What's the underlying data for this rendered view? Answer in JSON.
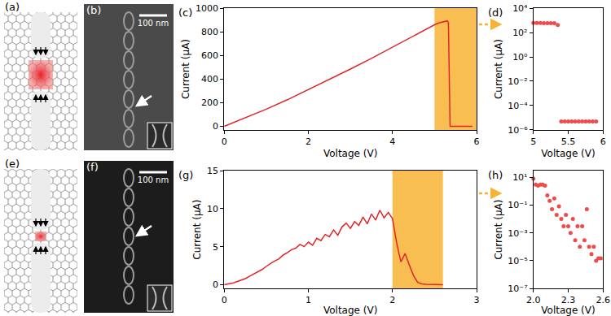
{
  "chart_data": [
    {
      "type": "line",
      "title": "(c)",
      "x_label": "Voltage (V)",
      "y_label": "Current (μA)",
      "color": "#e0262b",
      "x": [
        0,
        0.5,
        1,
        1.5,
        2,
        2.5,
        3,
        3.5,
        4,
        4.5,
        5,
        5.1,
        5.2,
        5.3,
        5.33,
        5.35,
        5.37,
        5.5,
        5.7,
        5.9
      ],
      "values": [
        0,
        70,
        145,
        225,
        310,
        395,
        485,
        575,
        670,
        770,
        860,
        875,
        885,
        893,
        880,
        200,
        0,
        0,
        0,
        0
      ],
      "xlim": [
        0,
        6
      ],
      "xticks": [
        0,
        2,
        4,
        6
      ],
      "ylim": [
        -30,
        1000
      ],
      "yticks": [
        0,
        200,
        400,
        600,
        800,
        1000
      ],
      "highlight_x": [
        5,
        6
      ]
    },
    {
      "type": "scatter",
      "title": "(d)",
      "x_label": "Voltage (V)",
      "y_label": "Current (μA)",
      "color": "#ef4b4b",
      "log": "y",
      "x": [
        5.0,
        5.05,
        5.1,
        5.15,
        5.2,
        5.25,
        5.3,
        5.35,
        5.4,
        5.45,
        5.5,
        5.55,
        5.6,
        5.65,
        5.7,
        5.75,
        5.8,
        5.85,
        5.9
      ],
      "values": [
        620,
        615,
        610,
        600,
        595,
        590,
        585,
        420,
        5e-06,
        5e-06,
        5e-06,
        5e-06,
        5e-06,
        5e-06,
        5e-06,
        5e-06,
        5e-06,
        5e-06,
        5e-06
      ],
      "xlim": [
        5,
        6
      ],
      "xticks": [
        5,
        5.5,
        6
      ],
      "ylim": [
        1e-06,
        10000
      ],
      "yticks": [
        {
          "value": 1e-06,
          "label": "10⁻⁶"
        },
        {
          "value": 0.0001,
          "label": "10⁻⁴"
        },
        {
          "value": 0.01,
          "label": "10⁻²"
        },
        {
          "value": 1,
          "label": "10⁰"
        },
        {
          "value": 100,
          "label": "10²"
        },
        {
          "value": 10000,
          "label": "10⁴"
        }
      ]
    },
    {
      "type": "line",
      "title": "(g)",
      "x_label": "Voltage (V)",
      "y_label": "Current (μA)",
      "color": "#e0262b",
      "x": [
        0,
        0.05,
        0.1,
        0.15,
        0.2,
        0.25,
        0.3,
        0.35,
        0.4,
        0.45,
        0.5,
        0.55,
        0.6,
        0.65,
        0.7,
        0.75,
        0.8,
        0.85,
        0.9,
        0.95,
        1.0,
        1.05,
        1.1,
        1.15,
        1.2,
        1.25,
        1.3,
        1.35,
        1.4,
        1.45,
        1.5,
        1.55,
        1.6,
        1.65,
        1.7,
        1.75,
        1.8,
        1.85,
        1.9,
        1.95,
        2.0,
        2.05,
        2.1,
        2.15,
        2.2,
        2.25,
        2.3,
        2.35,
        2.4,
        2.45,
        2.5,
        2.55,
        2.6
      ],
      "values": [
        0,
        0.1,
        0.2,
        0.4,
        0.6,
        0.8,
        1.1,
        1.4,
        1.7,
        2.0,
        2.4,
        2.8,
        3.1,
        3.4,
        3.9,
        4.2,
        4.6,
        4.8,
        5.3,
        5.0,
        5.6,
        5.2,
        6.1,
        5.8,
        6.6,
        6.3,
        7.2,
        6.5,
        7.6,
        8.1,
        7.4,
        8.3,
        7.8,
        8.9,
        8.0,
        9.3,
        8.5,
        9.8,
        8.8,
        9.5,
        8.7,
        5.5,
        3.0,
        4.1,
        2.6,
        1.2,
        0.3,
        0.1,
        0.05,
        0.02,
        0.01,
        0.01,
        0.01
      ],
      "xlim": [
        0,
        3
      ],
      "xticks": [
        0,
        1,
        2,
        3
      ],
      "ylim": [
        -0.5,
        15
      ],
      "yticks": [
        0,
        5,
        10,
        15
      ],
      "highlight_x": [
        2,
        2.6
      ]
    },
    {
      "type": "scatter",
      "title": "(h)",
      "x_label": "Voltage (V)",
      "y_label": "Current (μA)",
      "color": "#ef4b4b",
      "log": "y",
      "x": [
        2.0,
        2.02,
        2.04,
        2.06,
        2.08,
        2.1,
        2.12,
        2.14,
        2.16,
        2.18,
        2.2,
        2.22,
        2.24,
        2.26,
        2.28,
        2.3,
        2.32,
        2.34,
        2.36,
        2.38,
        2.4,
        2.42,
        2.44,
        2.46,
        2.48,
        2.5,
        2.52,
        2.54,
        2.56,
        2.58
      ],
      "values": [
        8,
        3,
        2.5,
        3,
        3,
        2.5,
        0.5,
        0.2,
        0.05,
        0.3,
        0.02,
        0.08,
        0.01,
        0.003,
        0.02,
        0.003,
        0.001,
        0.01,
        0.0003,
        0.003,
        0.0001,
        0.003,
        0.0003,
        0.05,
        0.0001,
        3e-05,
        0.0001,
        1e-05,
        1.5e-05,
        1.5e-05
      ],
      "xlim": [
        2,
        2.6
      ],
      "xticks": [
        {
          "value": 2,
          "label": "2.0"
        },
        2.3,
        2.6
      ],
      "ylim": [
        1e-07,
        30
      ],
      "yticks": [
        {
          "value": 1e-07,
          "label": "10⁻⁷"
        },
        {
          "value": 1e-05,
          "label": "10⁻⁵"
        },
        {
          "value": 0.001,
          "label": "10⁻³"
        },
        {
          "value": 0.1,
          "label": "10⁻¹"
        },
        {
          "value": 10,
          "label": "10¹"
        }
      ]
    }
  ],
  "figures": [
    {
      "label": "(a)"
    },
    {
      "label": "(b)",
      "scale_bar": "100 nm"
    },
    {
      "label": "(e)"
    },
    {
      "label": "(f)",
      "scale_bar": "100 nm"
    }
  ]
}
